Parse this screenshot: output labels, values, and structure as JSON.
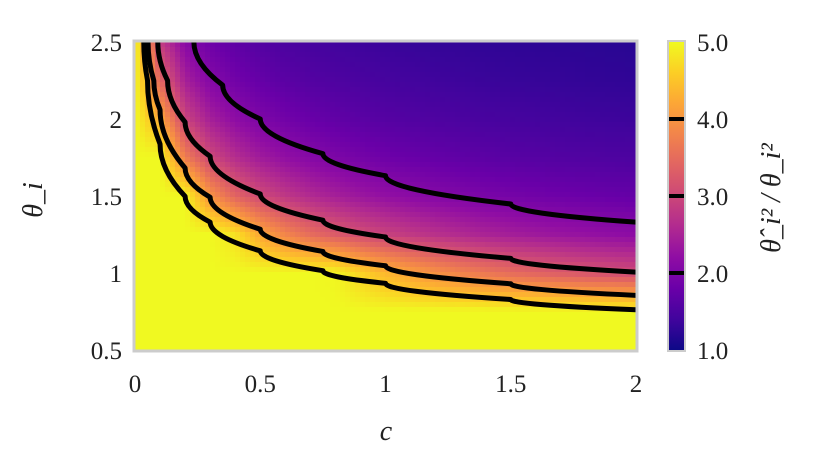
{
  "chart_data": {
    "type": "heatmap",
    "xlabel": "c",
    "ylabel": "θ_i",
    "colorbar_label": "θ̂_i² / θ_i²",
    "xlim": [
      0,
      2
    ],
    "ylim": [
      0.5,
      2.5
    ],
    "xticks": [
      "0",
      "0.5",
      "1",
      "1.5",
      "2"
    ],
    "yticks": [
      "0.5",
      "1",
      "1.5",
      "2",
      "2.5"
    ],
    "colorbar": {
      "colormap": "plasma",
      "range": [
        1.0,
        5.0
      ],
      "ticks": [
        "1.0",
        "2.0",
        "3.0",
        "4.0",
        "5.0"
      ],
      "line_levels": [
        2,
        3,
        4
      ]
    },
    "grid_c": [
      0,
      0.1,
      0.2,
      0.3,
      0.4,
      0.5,
      0.6,
      0.7,
      0.8,
      0.9,
      1.0,
      1.1,
      1.2,
      1.3,
      1.4,
      1.5,
      1.6,
      1.7,
      1.8,
      1.9,
      2.0
    ],
    "grid_theta": [
      0.5,
      0.75,
      1.0,
      1.25,
      1.5,
      1.75,
      2.0,
      2.25,
      2.5
    ],
    "values": [
      [
        5,
        5,
        5,
        5,
        5,
        5,
        5,
        5,
        5,
        5,
        5,
        5,
        5,
        5,
        5,
        5,
        5,
        5,
        5,
        5,
        5
      ],
      [
        5,
        5,
        5,
        5,
        5,
        5,
        5,
        5,
        5,
        5,
        5,
        5,
        5,
        5,
        5,
        5,
        5,
        5,
        5,
        5,
        5
      ],
      [
        5,
        5,
        5,
        5,
        5,
        5,
        5,
        5,
        4.97,
        4.64,
        4.37,
        4.14,
        3.95,
        3.78,
        3.64,
        3.5,
        3.39,
        3.29,
        3.19,
        3.11,
        3.03
      ],
      [
        5,
        5,
        5,
        5,
        4.78,
        4.21,
        3.81,
        3.51,
        3.28,
        3.09,
        2.94,
        2.81,
        2.7,
        2.6,
        2.51,
        2.44,
        2.37,
        2.31,
        2.26,
        2.21,
        2.17
      ],
      [
        5,
        5,
        5,
        3.97,
        3.4,
        3.04,
        2.79,
        2.6,
        2.45,
        2.33,
        2.23,
        2.15,
        2.08,
        2.02,
        1.96,
        1.92,
        1.87,
        1.84,
        1.8,
        1.77,
        1.74
      ],
      [
        5,
        5,
        3.72,
        3.02,
        2.64,
        2.39,
        2.22,
        2.09,
        1.99,
        1.91,
        1.84,
        1.78,
        1.74,
        1.69,
        1.66,
        1.62,
        1.6,
        1.57,
        1.55,
        1.53,
        1.51
      ],
      [
        5,
        4.24,
        2.95,
        2.45,
        2.18,
        2.0,
        1.88,
        1.78,
        1.71,
        1.65,
        1.6,
        1.56,
        1.53,
        1.5,
        1.47,
        1.45,
        1.43,
        1.41,
        1.39,
        1.38,
        1.36
      ],
      [
        5,
        3.42,
        2.46,
        2.08,
        1.88,
        1.75,
        1.65,
        1.58,
        1.53,
        1.49,
        1.45,
        1.42,
        1.39,
        1.37,
        1.35,
        1.33,
        1.32,
        1.31,
        1.29,
        1.28,
        1.27
      ],
      [
        5,
        2.86,
        2.12,
        1.84,
        1.68,
        1.58,
        1.5,
        1.45,
        1.41,
        1.37,
        1.35,
        1.32,
        1.3,
        1.29,
        1.27,
        1.26,
        1.25,
        1.24,
        1.23,
        1.22,
        1.21
      ]
    ],
    "contours": [
      {
        "level": 2,
        "points": [
          [
            0.235,
            2.5
          ],
          [
            0.35,
            2.22
          ],
          [
            0.5,
            2.0
          ],
          [
            0.75,
            1.775
          ],
          [
            1.0,
            1.632
          ],
          [
            1.5,
            1.448
          ],
          [
            2.0,
            1.33
          ]
        ]
      },
      {
        "level": 3,
        "points": [
          [
            0.091,
            2.5
          ],
          [
            0.13,
            2.25
          ],
          [
            0.2,
            1.98
          ],
          [
            0.3,
            1.758
          ],
          [
            0.5,
            1.513
          ],
          [
            0.75,
            1.343
          ],
          [
            1.0,
            1.234
          ],
          [
            1.5,
            1.095
          ],
          [
            2.0,
            1.006
          ]
        ]
      },
      {
        "level": 4,
        "points": [
          [
            0.052,
            2.5
          ],
          [
            0.075,
            2.25
          ],
          [
            0.1,
            2.06
          ],
          [
            0.2,
            1.682
          ],
          [
            0.3,
            1.492
          ],
          [
            0.5,
            1.284
          ],
          [
            0.75,
            1.14
          ],
          [
            1.0,
            1.047
          ],
          [
            1.5,
            0.93
          ],
          [
            2.0,
            0.855
          ]
        ]
      },
      {
        "level": 5,
        "points": [
          [
            0.035,
            2.5
          ],
          [
            0.05,
            2.25
          ],
          [
            0.1,
            1.837
          ],
          [
            0.2,
            1.498
          ],
          [
            0.3,
            1.33
          ],
          [
            0.5,
            1.144
          ],
          [
            0.75,
            1.015
          ],
          [
            1.0,
            0.933
          ],
          [
            1.5,
            0.828
          ],
          [
            2.0,
            0.761
          ]
        ]
      }
    ],
    "contour_color": "#000000",
    "frame_color": "#cccccc"
  }
}
